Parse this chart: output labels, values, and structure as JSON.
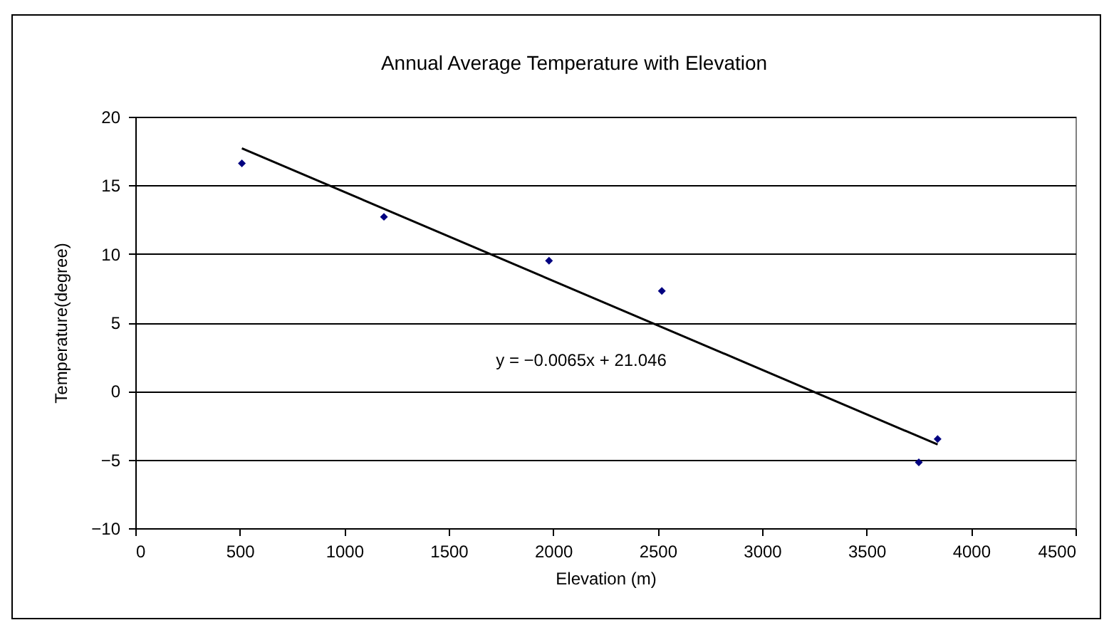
{
  "chart_data": {
    "type": "scatter",
    "title": "Annual Average Temperature with Elevation",
    "xlabel": "Elevation (m)",
    "ylabel": "Temperature(degree)",
    "series": [
      {
        "color": "#000080",
        "marker": "diamond",
        "x": [
          510,
          1190,
          1980,
          2520,
          3750,
          3840
        ],
        "values": [
          16.6,
          12.7,
          9.5,
          7.3,
          -5.2,
          -3.5
        ]
      },
      {
        "type": "line",
        "color": "#000000",
        "marker": "none",
        "line_style": "solid",
        "x": [
          510,
          3840
        ],
        "values": [
          17.7,
          -3.9
        ]
      }
    ],
    "annotations": [
      "y = −0.0065x + 21.046"
    ],
    "xlim": [
      0,
      4500
    ],
    "xticks": [
      0,
      500,
      1000,
      1500,
      2000,
      2500,
      3000,
      3500,
      4000,
      4500
    ],
    "ylim": [
      -10,
      20
    ],
    "yticks": [
      -10,
      -5,
      0,
      5,
      10,
      15,
      20
    ],
    "grid": "y"
  }
}
